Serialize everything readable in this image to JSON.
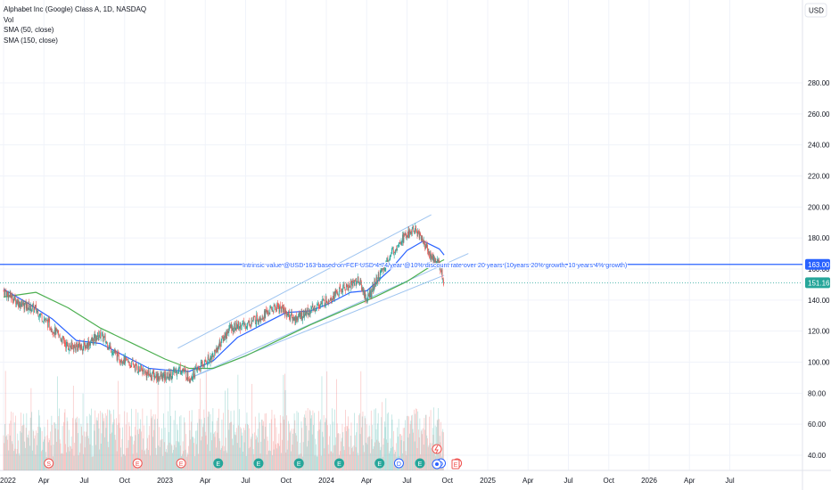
{
  "legend": {
    "title": "Alphabet Inc (Google) Class A, 1D, NASDAQ",
    "volume": "Vol",
    "sma50": "SMA (50, close)",
    "sma150": "SMA (150, close)"
  },
  "currency_button": "USD",
  "annotation": "Intrinsic value @USD 163 based on FCF USD 4.74/year @10% discount rate over 20 years (10years 20% growth, 10 years 4% growth)",
  "colors": {
    "intrinsic_line": "#2962ff",
    "last_price": "#26a69a",
    "sma50": "#2962ff",
    "sma150": "#4caf50",
    "channel": "#9ec4f0",
    "up": "#26a69a",
    "down": "#ef5350",
    "event_earnings": "#26a69a",
    "event_dividend": "#2962ff",
    "event_split": "#ef5350"
  },
  "chart_data": {
    "type": "candlestick",
    "symbol": "Alphabet Inc (Google) Class A",
    "interval": "1D",
    "exchange": "NASDAQ",
    "currency": "USD",
    "y_ticks": [
      40,
      60,
      80,
      100,
      120,
      140,
      160,
      180,
      200,
      220,
      240,
      260,
      280
    ],
    "y_tick_labels": [
      "40.00",
      "60.00",
      "80.00",
      "100.00",
      "120.00",
      "140.00",
      "160.00",
      "180.00",
      "200.00",
      "220.00",
      "240.00",
      "260.00",
      "280.00"
    ],
    "x_ticks": [
      "2022",
      "Apr",
      "Jul",
      "Oct",
      "2023",
      "Apr",
      "Jul",
      "Oct",
      "2024",
      "Apr",
      "Jul",
      "Oct",
      "2025",
      "Apr",
      "Jul",
      "Oct",
      "2026",
      "Apr",
      "Jul"
    ],
    "intrinsic_value": 163.0,
    "intrinsic_label": "163.00",
    "last_price": 151.16,
    "last_price_label": "151.16",
    "price_path": [
      [
        2022.0,
        146
      ],
      [
        2022.1,
        138
      ],
      [
        2022.2,
        134
      ],
      [
        2022.3,
        122
      ],
      [
        2022.4,
        110
      ],
      [
        2022.5,
        110
      ],
      [
        2022.6,
        118
      ],
      [
        2022.7,
        104
      ],
      [
        2022.8,
        98
      ],
      [
        2022.9,
        92
      ],
      [
        2023.0,
        90
      ],
      [
        2023.1,
        96
      ],
      [
        2023.15,
        90
      ],
      [
        2023.3,
        105
      ],
      [
        2023.4,
        122
      ],
      [
        2023.5,
        124
      ],
      [
        2023.6,
        130
      ],
      [
        2023.7,
        136
      ],
      [
        2023.8,
        128
      ],
      [
        2023.9,
        133
      ],
      [
        2024.0,
        140
      ],
      [
        2024.1,
        147
      ],
      [
        2024.2,
        153
      ],
      [
        2024.25,
        140
      ],
      [
        2024.35,
        160
      ],
      [
        2024.45,
        178
      ],
      [
        2024.5,
        182
      ],
      [
        2024.55,
        186
      ],
      [
        2024.6,
        178
      ],
      [
        2024.65,
        168
      ],
      [
        2024.7,
        163
      ],
      [
        2024.73,
        151
      ]
    ],
    "sma50": [
      [
        2022.0,
        147
      ],
      [
        2022.15,
        138
      ],
      [
        2022.3,
        128
      ],
      [
        2022.45,
        114
      ],
      [
        2022.6,
        112
      ],
      [
        2022.75,
        104
      ],
      [
        2022.9,
        96
      ],
      [
        2023.0,
        95
      ],
      [
        2023.15,
        94
      ],
      [
        2023.3,
        101
      ],
      [
        2023.45,
        116
      ],
      [
        2023.6,
        124
      ],
      [
        2023.75,
        132
      ],
      [
        2023.9,
        133
      ],
      [
        2024.0,
        137
      ],
      [
        2024.15,
        145
      ],
      [
        2024.25,
        146
      ],
      [
        2024.4,
        160
      ],
      [
        2024.5,
        172
      ],
      [
        2024.6,
        178
      ],
      [
        2024.7,
        173
      ],
      [
        2024.73,
        169
      ]
    ],
    "sma150": [
      [
        2022.0,
        142
      ],
      [
        2022.2,
        145
      ],
      [
        2022.4,
        135
      ],
      [
        2022.6,
        122
      ],
      [
        2022.8,
        112
      ],
      [
        2023.0,
        102
      ],
      [
        2023.15,
        96
      ],
      [
        2023.3,
        96
      ],
      [
        2023.5,
        104
      ],
      [
        2023.7,
        114
      ],
      [
        2023.9,
        124
      ],
      [
        2024.1,
        133
      ],
      [
        2024.3,
        142
      ],
      [
        2024.5,
        152
      ],
      [
        2024.65,
        162
      ],
      [
        2024.73,
        166
      ]
    ],
    "channel_upper": [
      [
        2023.08,
        109
      ],
      [
        2024.65,
        195
      ]
    ],
    "channel_lower": [
      [
        2023.16,
        90
      ],
      [
        2024.88,
        170
      ]
    ],
    "channel_base": [
      [
        2023.16,
        90
      ],
      [
        2024.73,
        156
      ]
    ],
    "events": [
      {
        "t": 2022.28,
        "label": "S",
        "kind": "split"
      },
      {
        "t": 2022.83,
        "label": "E",
        "kind": "split"
      },
      {
        "t": 2023.1,
        "label": "E",
        "kind": "split"
      },
      {
        "t": 2023.33,
        "label": "E",
        "kind": "earnings"
      },
      {
        "t": 2023.58,
        "label": "E",
        "kind": "earnings"
      },
      {
        "t": 2023.83,
        "label": "E",
        "kind": "earnings"
      },
      {
        "t": 2024.08,
        "label": "E",
        "kind": "earnings"
      },
      {
        "t": 2024.33,
        "label": "E",
        "kind": "earnings"
      },
      {
        "t": 2024.45,
        "label": "D",
        "kind": "dividend"
      },
      {
        "t": 2024.58,
        "label": "E",
        "kind": "earnings"
      },
      {
        "t": 2024.71,
        "label": "D",
        "kind": "dividend"
      },
      {
        "t": 2024.81,
        "label": "E",
        "kind": "split"
      }
    ]
  }
}
